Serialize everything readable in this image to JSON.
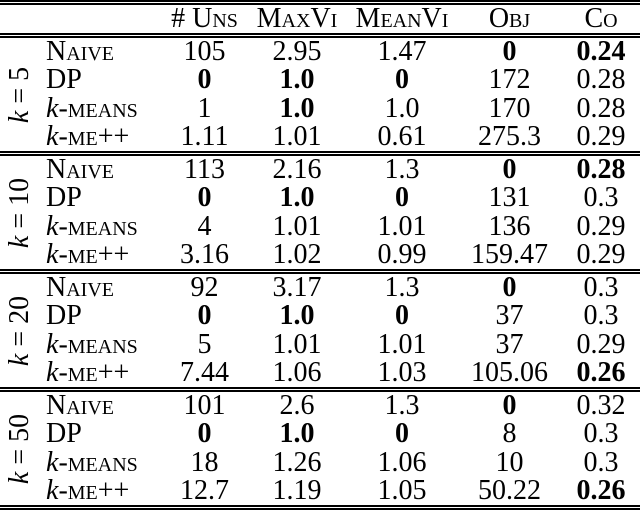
{
  "table": {
    "header": {
      "uns": "# Uns",
      "maxvi": "MaxVi",
      "meanvi": "MeanVi",
      "obj": "Obj",
      "co": "Co"
    },
    "groups": [
      {
        "k": {
          "it": "k",
          "rest": " = 5"
        },
        "rows": [
          {
            "m_it": "",
            "m_rest": "Naive",
            "c": [
              {
                "v": "105",
                "b": false
              },
              {
                "v": "2.95",
                "b": false
              },
              {
                "v": "1.47",
                "b": false
              },
              {
                "v": "0",
                "b": true
              },
              {
                "v": "0.24",
                "b": true
              }
            ]
          },
          {
            "m_it": "",
            "m_rest": "DP",
            "c": [
              {
                "v": "0",
                "b": true
              },
              {
                "v": "1.0",
                "b": true
              },
              {
                "v": "0",
                "b": true
              },
              {
                "v": "172",
                "b": false
              },
              {
                "v": "0.28",
                "b": false
              }
            ]
          },
          {
            "m_it": "k",
            "m_rest": "-means",
            "c": [
              {
                "v": "1",
                "b": false
              },
              {
                "v": "1.0",
                "b": true
              },
              {
                "v": "1.0",
                "b": false
              },
              {
                "v": "170",
                "b": false
              },
              {
                "v": "0.28",
                "b": false
              }
            ]
          },
          {
            "m_it": "k",
            "m_rest": "-me++",
            "c": [
              {
                "v": "1.11",
                "b": false
              },
              {
                "v": "1.01",
                "b": false
              },
              {
                "v": "0.61",
                "b": false
              },
              {
                "v": "275.3",
                "b": false
              },
              {
                "v": "0.29",
                "b": false
              }
            ]
          }
        ]
      },
      {
        "k": {
          "it": "k",
          "rest": " = 10"
        },
        "rows": [
          {
            "m_it": "",
            "m_rest": "Naive",
            "c": [
              {
                "v": "113",
                "b": false
              },
              {
                "v": "2.16",
                "b": false
              },
              {
                "v": "1.3",
                "b": false
              },
              {
                "v": "0",
                "b": true
              },
              {
                "v": "0.28",
                "b": true
              }
            ]
          },
          {
            "m_it": "",
            "m_rest": "DP",
            "c": [
              {
                "v": "0",
                "b": true
              },
              {
                "v": "1.0",
                "b": true
              },
              {
                "v": "0",
                "b": true
              },
              {
                "v": "131",
                "b": false
              },
              {
                "v": "0.3",
                "b": false
              }
            ]
          },
          {
            "m_it": "k",
            "m_rest": "-means",
            "c": [
              {
                "v": "4",
                "b": false
              },
              {
                "v": "1.01",
                "b": false
              },
              {
                "v": "1.01",
                "b": false
              },
              {
                "v": "136",
                "b": false
              },
              {
                "v": "0.29",
                "b": false
              }
            ]
          },
          {
            "m_it": "k",
            "m_rest": "-me++",
            "c": [
              {
                "v": "3.16",
                "b": false
              },
              {
                "v": "1.02",
                "b": false
              },
              {
                "v": "0.99",
                "b": false
              },
              {
                "v": "159.47",
                "b": false
              },
              {
                "v": "0.29",
                "b": false
              }
            ]
          }
        ]
      },
      {
        "k": {
          "it": "k",
          "rest": " = 20"
        },
        "rows": [
          {
            "m_it": "",
            "m_rest": "Naive",
            "c": [
              {
                "v": "92",
                "b": false
              },
              {
                "v": "3.17",
                "b": false
              },
              {
                "v": "1.3",
                "b": false
              },
              {
                "v": "0",
                "b": true
              },
              {
                "v": "0.3",
                "b": false
              }
            ]
          },
          {
            "m_it": "",
            "m_rest": "DP",
            "c": [
              {
                "v": "0",
                "b": true
              },
              {
                "v": "1.0",
                "b": true
              },
              {
                "v": "0",
                "b": true
              },
              {
                "v": "37",
                "b": false
              },
              {
                "v": "0.3",
                "b": false
              }
            ]
          },
          {
            "m_it": "k",
            "m_rest": "-means",
            "c": [
              {
                "v": "5",
                "b": false
              },
              {
                "v": "1.01",
                "b": false
              },
              {
                "v": "1.01",
                "b": false
              },
              {
                "v": "37",
                "b": false
              },
              {
                "v": "0.29",
                "b": false
              }
            ]
          },
          {
            "m_it": "k",
            "m_rest": "-me++",
            "c": [
              {
                "v": "7.44",
                "b": false
              },
              {
                "v": "1.06",
                "b": false
              },
              {
                "v": "1.03",
                "b": false
              },
              {
                "v": "105.06",
                "b": false
              },
              {
                "v": "0.26",
                "b": true
              }
            ]
          }
        ]
      },
      {
        "k": {
          "it": "k",
          "rest": " = 50"
        },
        "rows": [
          {
            "m_it": "",
            "m_rest": "Naive",
            "c": [
              {
                "v": "101",
                "b": false
              },
              {
                "v": "2.6",
                "b": false
              },
              {
                "v": "1.3",
                "b": false
              },
              {
                "v": "0",
                "b": true
              },
              {
                "v": "0.32",
                "b": false
              }
            ]
          },
          {
            "m_it": "",
            "m_rest": "DP",
            "c": [
              {
                "v": "0",
                "b": true
              },
              {
                "v": "1.0",
                "b": true
              },
              {
                "v": "0",
                "b": true
              },
              {
                "v": "8",
                "b": false
              },
              {
                "v": "0.3",
                "b": false
              }
            ]
          },
          {
            "m_it": "k",
            "m_rest": "-means",
            "c": [
              {
                "v": "18",
                "b": false
              },
              {
                "v": "1.26",
                "b": false
              },
              {
                "v": "1.06",
                "b": false
              },
              {
                "v": "10",
                "b": false
              },
              {
                "v": "0.3",
                "b": false
              }
            ]
          },
          {
            "m_it": "k",
            "m_rest": "-me++",
            "c": [
              {
                "v": "12.7",
                "b": false
              },
              {
                "v": "1.19",
                "b": false
              },
              {
                "v": "1.05",
                "b": false
              },
              {
                "v": "50.22",
                "b": false
              },
              {
                "v": "0.26",
                "b": true
              }
            ]
          }
        ]
      }
    ]
  }
}
